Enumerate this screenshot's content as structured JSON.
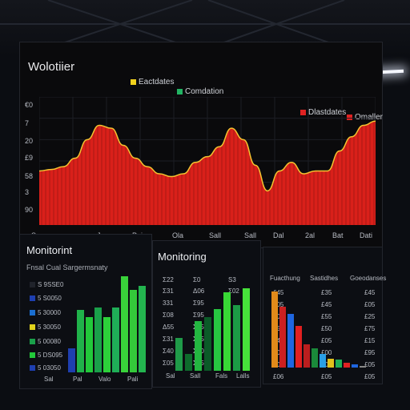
{
  "top": {
    "title": "Wolotiier",
    "legend": [
      {
        "label": "Eactdates",
        "color": "#f2d21c"
      },
      {
        "label": "Comdation",
        "color": "#22b463"
      }
    ],
    "legend_right": [
      {
        "label": "Dlastdates",
        "color": "#e02222"
      },
      {
        "label": "Omaller",
        "color": "#e02222"
      }
    ],
    "y_ticks": [
      "€0",
      "7",
      "20",
      "£9",
      "58",
      "3",
      "90"
    ],
    "x_ticks": [
      "San",
      "Jr",
      "Pais",
      "Ola",
      "Sall",
      "Dal",
      "Bat",
      "2al",
      "Dati"
    ]
  },
  "chart_data": [
    {
      "type": "area",
      "title": "Wolotiier",
      "series": [
        {
          "name": "Dlastdates",
          "values": [
            38,
            39,
            41,
            47,
            60,
            70,
            68,
            56,
            47,
            41,
            36,
            34,
            36,
            44,
            48,
            55,
            68,
            60,
            42,
            24,
            38,
            44,
            36,
            38,
            38,
            52,
            62,
            70,
            73
          ]
        }
      ],
      "color": "#d9201a"
    },
    {
      "type": "bar",
      "title": "Monitorint",
      "series": [
        {
          "name": "",
          "values": [
            30,
            77,
            68,
            80,
            68,
            80,
            118,
            101,
            106
          ]
        }
      ],
      "colors": [
        "#1e3fb0",
        "#20b24a",
        "#22c93a",
        "#1aa04a",
        "#2dd13a",
        "#1fae57",
        "#39d23a",
        "#34c93a",
        "#23b44f"
      ]
    },
    {
      "type": "bar",
      "title": "Monitoring",
      "series": [
        {
          "name": "",
          "values": [
            40,
            20,
            60,
            65,
            75,
            95,
            80,
            100
          ]
        }
      ],
      "colors": [
        "#1f9a48",
        "#0e6b2c",
        "#23b640",
        "#0b5a28",
        "#27c741",
        "#38d835",
        "#1c9b45",
        "#46e23a"
      ]
    },
    {
      "type": "bar",
      "title": "",
      "series": [
        {
          "name": "",
          "values": [
            100,
            80,
            70,
            55,
            30,
            25,
            18,
            12,
            10,
            6,
            4,
            2
          ]
        }
      ],
      "colors": [
        "#e28a1a",
        "#cc2020",
        "#1f66e0",
        "#e22020",
        "#bb1e1e",
        "#1a8a3a",
        "#2a9fe6",
        "#e0c21c",
        "#1fae57",
        "#e02222",
        "#1f66e0",
        "#888888"
      ]
    }
  ],
  "left": {
    "title": "Monitorint",
    "subtitle": "Fnsal Cual Sargermsnaty",
    "rows": [
      {
        "label": "S 9SSE0",
        "color": "#20232b"
      },
      {
        "label": "5 S0050",
        "color": "#1e3fb0"
      },
      {
        "label": "5 30000",
        "color": "#1a6ed0"
      },
      {
        "label": "5 30050",
        "color": "#e0d21c"
      },
      {
        "label": "5 00080",
        "color": "#1aa04a"
      },
      {
        "label": "5 DS095",
        "color": "#22c93a"
      },
      {
        "label": "5 03050",
        "color": "#1e3fb0"
      }
    ],
    "x_ticks": [
      "Sal",
      "Pal",
      "Valo",
      "Pali"
    ]
  },
  "middle": {
    "title": "Monitoring",
    "head": [
      "Σ22",
      "Σ0",
      "S3"
    ],
    "rows": [
      [
        "Σ31",
        "Δ06",
        "Σ02"
      ],
      [
        "331",
        "Σ95",
        ""
      ],
      [
        "Σ08",
        "Σ95",
        ""
      ],
      [
        "Δ55",
        "Σ05",
        ""
      ],
      [
        "Σ31",
        "Σ55",
        ""
      ],
      [
        "Σ40",
        "Σ20",
        ""
      ],
      [
        "Σ05",
        "Σ35",
        ""
      ]
    ],
    "x_ticks": [
      "Sal",
      "Sall",
      "Fals",
      "Lalls"
    ]
  },
  "right": {
    "head": [
      "Fuacthung",
      "Sastidhes",
      "Goeodanses"
    ],
    "rows": [
      [
        "£45",
        "£35",
        "£45"
      ],
      [
        "£05",
        "£45",
        "£05"
      ],
      [
        "£05",
        "£55",
        "£25"
      ],
      [
        "£50",
        "£50",
        "£75"
      ],
      [
        "£40",
        "£05",
        "£15"
      ],
      [
        "£05",
        "£00",
        "£95"
      ],
      [
        "£05",
        "£05",
        "£05"
      ],
      [
        "£06",
        "£05",
        "£05"
      ]
    ]
  }
}
